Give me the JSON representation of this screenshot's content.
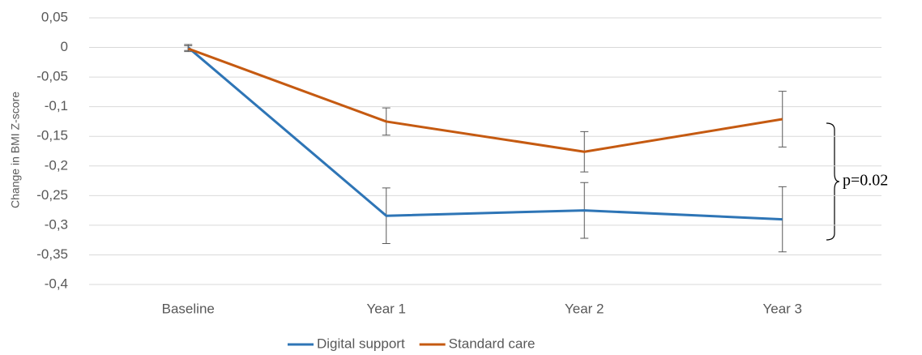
{
  "chart_data": {
    "type": "line",
    "y_label": "Change in BMI Z-score",
    "categories": [
      "Baseline",
      "Year 1",
      "Year 2",
      "Year 3"
    ],
    "series": [
      {
        "name": "Digital support",
        "color": "#2e75b6",
        "values": [
          0,
          -0.284,
          -0.275,
          -0.29
        ],
        "errors": [
          0.005,
          0.047,
          0.047,
          0.055
        ]
      },
      {
        "name": "Standard care",
        "color": "#c55a11",
        "values": [
          -0.002,
          -0.125,
          -0.176,
          -0.121
        ],
        "errors": [
          0.005,
          0.023,
          0.034,
          0.047
        ]
      }
    ],
    "ylim": [
      -0.4,
      0.05
    ],
    "yticks": [
      {
        "value": -0.4,
        "label": "-0,4"
      },
      {
        "value": -0.35,
        "label": "-0,35"
      },
      {
        "value": -0.3,
        "label": "-0,3"
      },
      {
        "value": -0.25,
        "label": "-0,25"
      },
      {
        "value": -0.2,
        "label": "-0,2"
      },
      {
        "value": -0.15,
        "label": "-0,15"
      },
      {
        "value": -0.1,
        "label": "-0,1"
      },
      {
        "value": -0.05,
        "label": "-0,05"
      },
      0,
      {
        "value": 0.05,
        "label": "0,05"
      }
    ],
    "grid": true,
    "annotation": "p=0.02",
    "legend": "bottom"
  }
}
